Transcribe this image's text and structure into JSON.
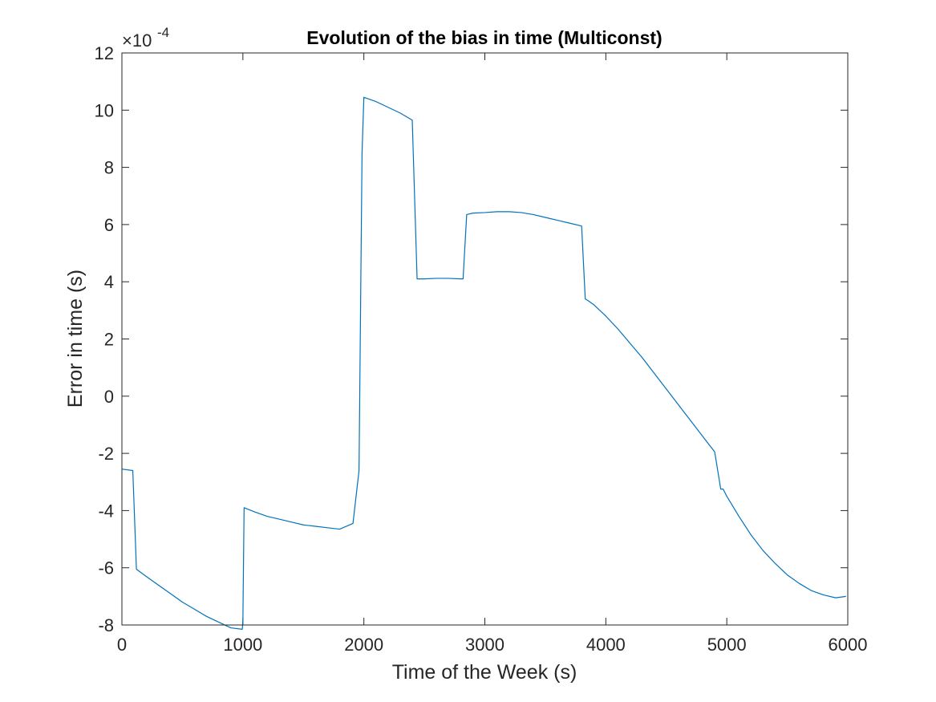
{
  "chart_data": {
    "type": "line",
    "title": "Evolution of the bias in time (Multiconst)",
    "xlabel": "Time of the Week (s)",
    "ylabel": "Error in time (s)",
    "xlim": [
      0,
      6000
    ],
    "ylim": [
      -8,
      12
    ],
    "y_multiplier": "×10",
    "y_exponent": "-4",
    "xticks": [
      0,
      1000,
      2000,
      3000,
      4000,
      5000,
      6000
    ],
    "yticks": [
      -8,
      -6,
      -4,
      -2,
      0,
      2,
      4,
      6,
      8,
      10,
      12
    ],
    "grid": false,
    "box": true,
    "color": "#0072BD",
    "series": [
      {
        "x": [
          0,
          90,
          120,
          200,
          300,
          400,
          500,
          600,
          700,
          800,
          900,
          995,
          1000,
          1010,
          1100,
          1200,
          1300,
          1400,
          1500,
          1600,
          1700,
          1800,
          1910,
          1960,
          1985,
          2000,
          2100,
          2200,
          2300,
          2400,
          2440,
          2500,
          2600,
          2700,
          2800,
          2820,
          2850,
          2900,
          3000,
          3100,
          3200,
          3300,
          3400,
          3500,
          3600,
          3700,
          3800,
          3830,
          3850,
          3900,
          4000,
          4100,
          4200,
          4300,
          4400,
          4500,
          4600,
          4700,
          4800,
          4900,
          4950,
          4970,
          5000,
          5100,
          5200,
          5300,
          5400,
          5500,
          5600,
          5700,
          5800,
          5900,
          5985
        ],
        "y": [
          -2.55,
          -2.6,
          -6.05,
          -6.3,
          -6.6,
          -6.9,
          -7.2,
          -7.45,
          -7.7,
          -7.9,
          -8.1,
          -8.15,
          -7.85,
          -3.9,
          -4.05,
          -4.2,
          -4.3,
          -4.4,
          -4.5,
          -4.55,
          -4.6,
          -4.65,
          -4.45,
          -2.6,
          8.5,
          10.45,
          10.3,
          10.1,
          9.9,
          9.65,
          4.1,
          4.1,
          4.12,
          4.12,
          4.1,
          4.1,
          6.35,
          6.4,
          6.42,
          6.45,
          6.45,
          6.42,
          6.35,
          6.25,
          6.15,
          6.05,
          5.95,
          3.4,
          3.35,
          3.2,
          2.8,
          2.35,
          1.85,
          1.35,
          0.8,
          0.25,
          -0.3,
          -0.85,
          -1.4,
          -1.95,
          -3.25,
          -3.25,
          -3.5,
          -4.2,
          -4.85,
          -5.4,
          -5.85,
          -6.25,
          -6.55,
          -6.8,
          -6.95,
          -7.05,
          -7.0
        ]
      }
    ]
  }
}
